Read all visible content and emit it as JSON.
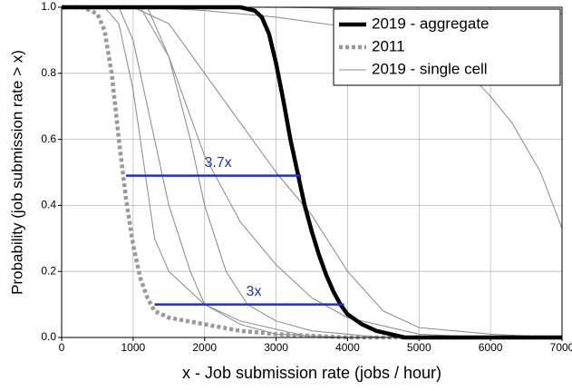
{
  "chart_data": {
    "type": "line",
    "xlabel": "x - Job submission rate (jobs / hour)",
    "ylabel": "Probability (job submission rate > x)",
    "xlim": [
      0,
      7000
    ],
    "ylim": [
      0,
      1
    ],
    "xticks": [
      0,
      1000,
      2000,
      3000,
      4000,
      5000,
      6000,
      7000
    ],
    "yticks": [
      {
        "value": 0,
        "label": "0.0"
      },
      0.2,
      0.4,
      0.6,
      0.8,
      {
        "value": 1,
        "label": "1.0"
      }
    ],
    "grid": true,
    "legend": "top-right",
    "series": [
      {
        "name": "2019 - aggregate",
        "color": "#000000",
        "style": "solid-thick",
        "x": [
          0,
          2500,
          2700,
          2800,
          2900,
          3000,
          3100,
          3200,
          3300,
          3400,
          3500,
          3600,
          3700,
          3800,
          3900,
          4000,
          4200,
          4400,
          4600,
          4800,
          7000
        ],
        "values": [
          1,
          1,
          0.99,
          0.97,
          0.92,
          0.83,
          0.72,
          0.6,
          0.5,
          0.4,
          0.32,
          0.25,
          0.19,
          0.14,
          0.1,
          0.07,
          0.04,
          0.02,
          0.01,
          0,
          0
        ]
      },
      {
        "name": "2011",
        "color": "#999999",
        "style": "dotted",
        "x": [
          0,
          300,
          500,
          600,
          700,
          800,
          900,
          1000,
          1100,
          1200,
          1300,
          1500,
          2000,
          2500,
          3000,
          4000,
          7000
        ],
        "values": [
          1,
          1,
          0.98,
          0.93,
          0.8,
          0.6,
          0.42,
          0.28,
          0.18,
          0.12,
          0.08,
          0.06,
          0.04,
          0.02,
          0.01,
          0,
          0
        ]
      },
      {
        "name": "2019 - single cell",
        "color": "#888888",
        "style": "thin",
        "lines": [
          {
            "x": [
              0,
              1200,
              2000,
              3000,
              4000,
              4800,
              5300,
              5700,
              6000,
              6300,
              6700,
              7000
            ],
            "values": [
              1,
              1,
              0.99,
              0.97,
              0.94,
              0.9,
              0.85,
              0.8,
              0.73,
              0.65,
              0.5,
              0.33
            ]
          },
          {
            "x": [
              0,
              3000,
              4500,
              6000,
              7000
            ],
            "values": [
              1,
              1,
              0.995,
              0.99,
              0.98
            ]
          },
          {
            "x": [
              0,
              1000,
              1500,
              2000,
              2500,
              3000,
              3500,
              4000,
              4500,
              5000,
              6000,
              7000
            ],
            "values": [
              1,
              1,
              0.95,
              0.8,
              0.65,
              0.5,
              0.37,
              0.2,
              0.08,
              0.03,
              0.01,
              0
            ]
          },
          {
            "x": [
              0,
              1100,
              1500,
              2000,
              2500,
              3000,
              3500,
              4000,
              5000,
              6000
            ],
            "values": [
              1,
              1,
              0.85,
              0.55,
              0.35,
              0.22,
              0.12,
              0.06,
              0.01,
              0
            ]
          },
          {
            "x": [
              0,
              800,
              1000,
              1300,
              1500,
              1800,
              2000,
              2500,
              3000,
              4000
            ],
            "values": [
              1,
              1,
              0.9,
              0.6,
              0.4,
              0.2,
              0.1,
              0.04,
              0.01,
              0
            ]
          },
          {
            "x": [
              0,
              1200,
              1500,
              1800,
              2000,
              2300,
              2600,
              3000,
              3500,
              4500
            ],
            "values": [
              1,
              1,
              0.85,
              0.6,
              0.4,
              0.2,
              0.1,
              0.05,
              0.02,
              0
            ]
          },
          {
            "x": [
              0,
              600,
              800,
              1000,
              1300,
              1500,
              2000,
              2500,
              3500
            ],
            "values": [
              1,
              1,
              0.95,
              0.75,
              0.3,
              0.2,
              0.1,
              0.05,
              0
            ]
          }
        ]
      }
    ],
    "annotations": [
      {
        "text": "3.7x",
        "color": "#2233bb",
        "x0": 900,
        "x1": 3350,
        "y": 0.49
      },
      {
        "text": "3x",
        "color": "#2233bb",
        "x0": 1300,
        "x1": 3950,
        "y": 0.1
      }
    ]
  }
}
